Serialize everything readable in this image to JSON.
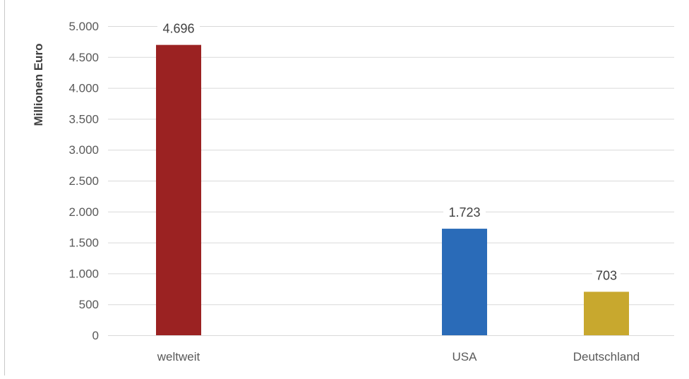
{
  "chart_data": {
    "type": "bar",
    "categories": [
      "weltweit",
      "",
      "USA",
      "Deutschland"
    ],
    "values": [
      4696,
      null,
      1723,
      703
    ],
    "value_labels": [
      "4.696",
      "",
      "1.723",
      "703"
    ],
    "bar_colors": [
      "#9b2222",
      null,
      "#2a6bb8",
      "#c8a82e"
    ],
    "ylabel": "Millionen Euro",
    "xlabel": "",
    "title": "",
    "ylim": [
      0,
      5000
    ],
    "yticks": [
      0,
      500,
      1000,
      1500,
      2000,
      2500,
      3000,
      3500,
      4000,
      4500,
      5000
    ],
    "ytick_labels": [
      "0",
      "500",
      "1.000",
      "1.500",
      "2.000",
      "2.500",
      "3.000",
      "3.500",
      "4.000",
      "4.500",
      "5.000"
    ],
    "grid": true,
    "legend": "none"
  },
  "colors": {
    "gridline": "#d9d9d9",
    "axis_text": "#595959",
    "label_text": "#404040"
  }
}
